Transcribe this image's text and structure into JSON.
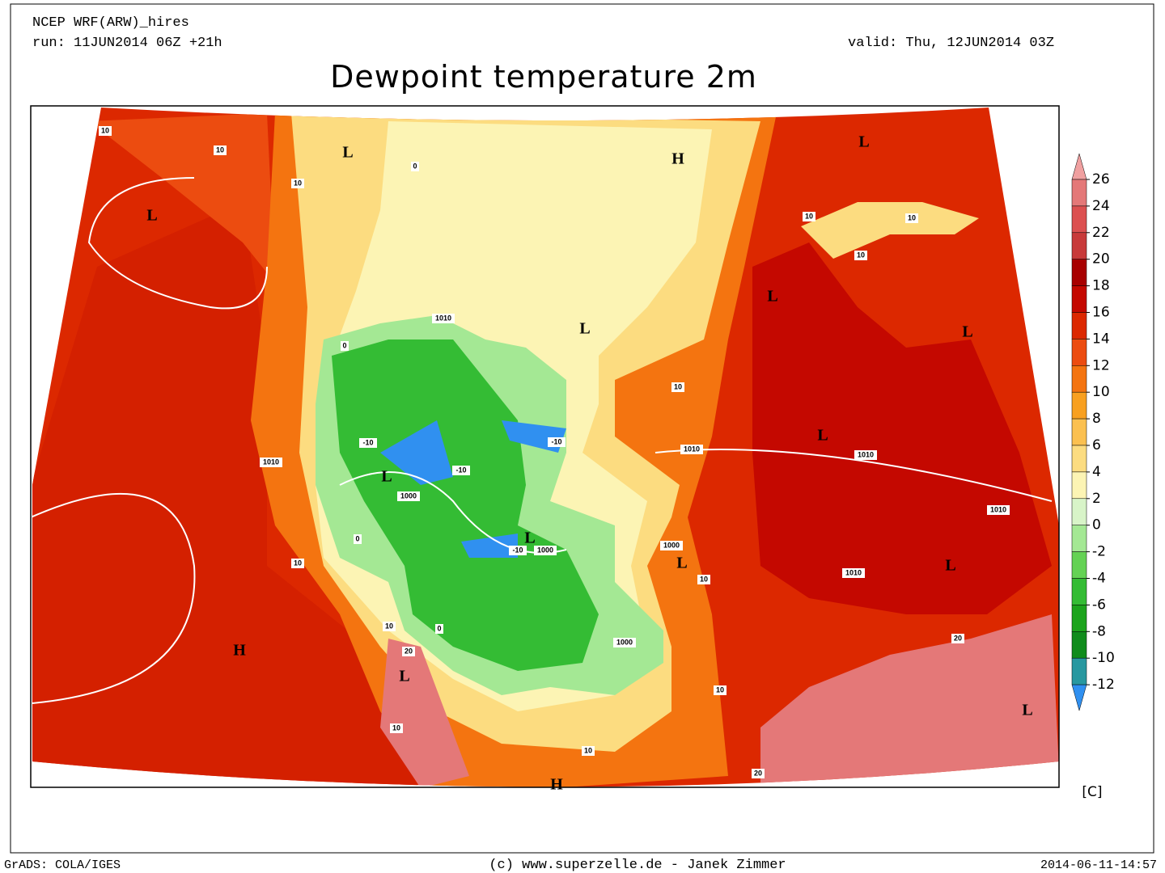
{
  "header": {
    "model": "NCEP WRF(ARW)_hires",
    "run": "run: 11JUN2014 06Z +21h",
    "valid": "valid: Thu, 12JUN2014 03Z",
    "title": "Dewpoint temperature 2m"
  },
  "colorbar": {
    "levels": [
      26,
      24,
      22,
      20,
      18,
      16,
      14,
      12,
      10,
      8,
      6,
      4,
      2,
      0,
      -2,
      -4,
      -6,
      -8,
      -10,
      -12
    ],
    "colors": [
      "#f0a0a0",
      "#e47878",
      "#dc5050",
      "#c83a3a",
      "#a80000",
      "#c40800",
      "#dc2800",
      "#ec4c10",
      "#f47410",
      "#f8a020",
      "#fbc050",
      "#fcdc80",
      "#fcf4b4",
      "#d8f4c8",
      "#a4e894",
      "#64d254",
      "#34bc34",
      "#1ca41c",
      "#108c1c",
      "#2898a0",
      "#3090f0"
    ],
    "unit": "[C]"
  },
  "map": {
    "pressure_centers": [
      "L",
      "H",
      "L",
      "L",
      "L",
      "L",
      "L",
      "L",
      "L",
      "L",
      "L",
      "L",
      "L",
      "H",
      "L",
      "H"
    ],
    "contour_labels": [
      1010,
      1010,
      1010,
      1010,
      1010,
      1010,
      1000,
      1000,
      1000,
      1000,
      -10,
      -10,
      -10,
      -10,
      10,
      10,
      10,
      10,
      10,
      10,
      10,
      10,
      10,
      20,
      20,
      20,
      0,
      0,
      0,
      0,
      10,
      10,
      10,
      10
    ]
  },
  "footer": {
    "left": "GrADS: COLA/IGES",
    "center": "(c) www.superzelle.de - Janek Zimmer",
    "right": "2014-06-11-14:57"
  }
}
